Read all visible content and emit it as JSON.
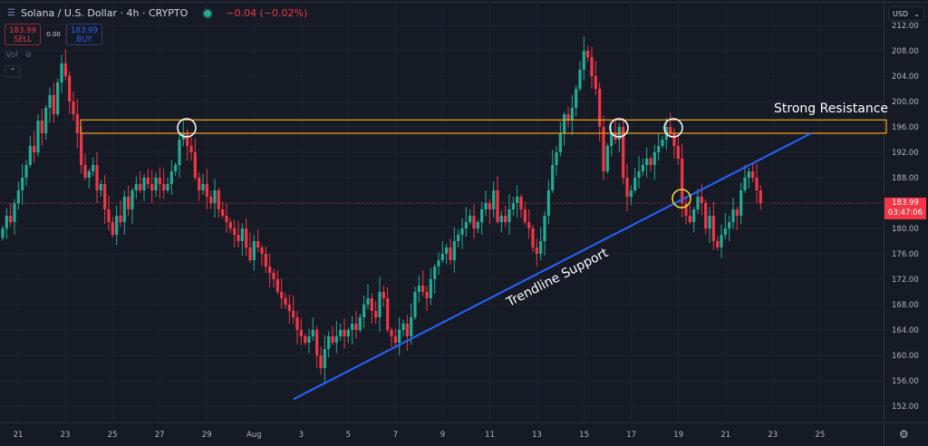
{
  "header": {
    "symbol": "Solana / U.S. Dollar · 4h · CRYPTO",
    "change": "−0.04 (−0.02%)",
    "menu_icon": "hamburger-icon",
    "status_icon": "market-open-dot"
  },
  "trade": {
    "sell_price": "183.99",
    "sell_label": "SELL",
    "spread": "0.00",
    "buy_price": "183.99",
    "buy_label": "BUY"
  },
  "volume": {
    "label": "Vol",
    "icon": "eye-off-icon"
  },
  "axis": {
    "currency": "USD",
    "last_price": "183.99",
    "countdown": "03:47:06"
  },
  "colors": {
    "up": "#22ab94",
    "down": "#f23645",
    "resistance": "#f7a21b",
    "trendline": "#2962ff",
    "background": "#161a25"
  },
  "chart_data": {
    "type": "candlestick",
    "interval": "4h",
    "ylim": [
      150,
      213
    ],
    "yticks": [
      "152.00",
      "156.00",
      "160.00",
      "164.00",
      "168.00",
      "172.00",
      "176.00",
      "180.00",
      "184.00",
      "188.00",
      "192.00",
      "196.00",
      "200.00",
      "204.00",
      "208.00",
      "212.00"
    ],
    "xticks": [
      "21",
      "23",
      "25",
      "27",
      "29",
      "Aug",
      "3",
      "5",
      "7",
      "9",
      "11",
      "13",
      "15",
      "17",
      "19",
      "21",
      "23",
      "25"
    ],
    "closes": [
      180,
      182,
      181,
      184,
      186,
      188,
      190,
      193,
      192,
      197,
      195,
      199,
      201,
      198,
      203,
      206,
      204,
      200,
      198,
      195,
      190,
      188,
      189,
      190,
      186,
      187,
      183,
      181,
      179,
      182,
      181,
      185,
      183,
      186,
      187,
      186,
      188,
      187,
      186,
      188,
      187,
      186,
      187,
      189,
      190,
      194,
      195,
      193,
      192,
      188,
      186,
      187,
      185,
      184,
      186,
      183,
      182,
      181,
      180,
      179,
      178,
      180,
      177,
      175,
      178,
      177,
      176,
      174,
      173,
      172,
      170,
      169,
      168,
      167,
      166,
      164,
      163,
      162,
      163,
      164,
      160,
      158,
      161,
      163,
      162,
      163,
      164,
      163,
      164,
      165,
      164,
      166,
      168,
      169,
      167,
      166,
      170,
      169,
      164,
      163,
      162,
      164,
      165,
      163,
      166,
      170,
      171,
      170,
      169,
      172,
      174,
      175,
      176,
      177,
      175,
      178,
      179,
      180,
      181,
      182,
      180,
      181,
      183,
      184,
      183,
      186,
      181,
      182,
      181,
      183,
      184,
      185,
      183,
      181,
      180,
      177,
      176,
      178,
      182,
      186,
      190,
      192,
      195,
      198,
      197,
      199,
      202,
      205,
      208,
      207,
      204,
      202,
      196,
      189,
      193,
      195,
      194,
      196,
      188,
      185,
      186,
      188,
      189,
      190,
      191,
      190,
      192,
      193,
      194,
      196,
      195,
      193,
      191,
      184,
      182,
      181,
      183,
      185,
      184,
      180,
      182,
      178,
      177,
      179,
      180,
      181,
      183,
      182,
      186,
      188,
      189,
      188,
      186,
      184
    ],
    "annotations": {
      "resistance": {
        "label": "Strong Resistance",
        "top": 197.1,
        "bottom": 195.0
      },
      "trendline": {
        "label": "Trendline Support",
        "from": 153.1,
        "to": 195.0
      },
      "touch_markers": 4,
      "break_marker": 1
    }
  }
}
